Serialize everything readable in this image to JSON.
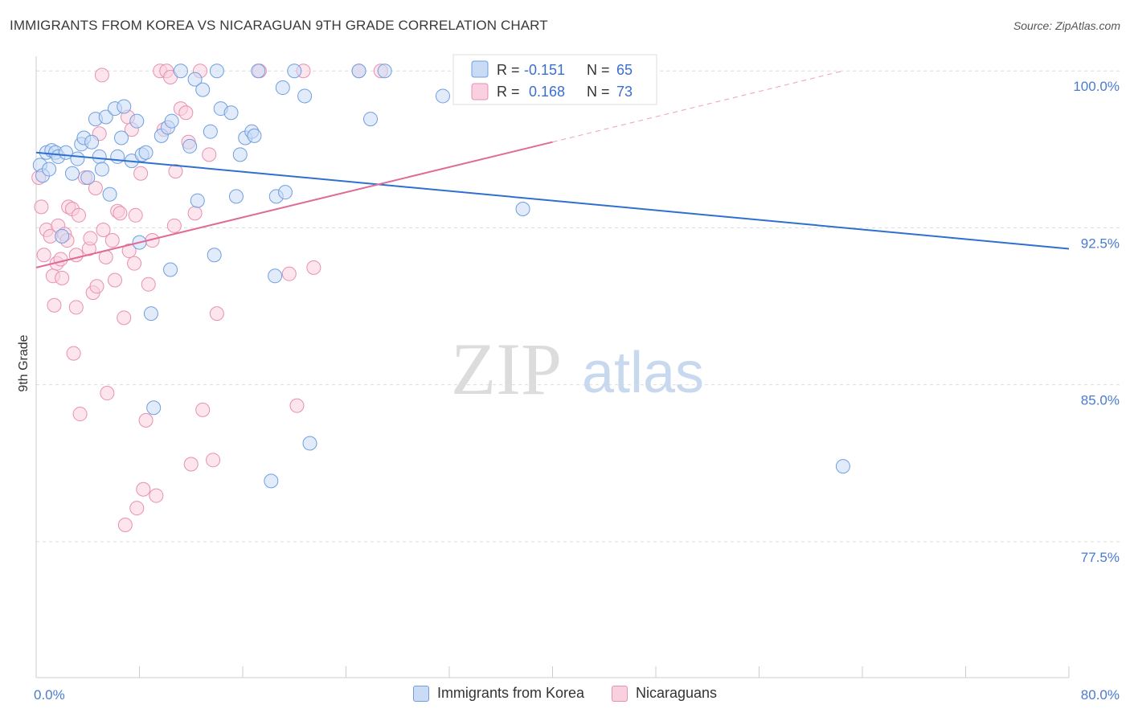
{
  "title": "IMMIGRANTS FROM KOREA VS NICARAGUAN 9TH GRADE CORRELATION CHART",
  "source": "Source: ZipAtlas.com",
  "watermark": {
    "zip": "ZIP",
    "atlas": "atlas"
  },
  "chart_data": {
    "type": "scatter",
    "xlabel": "",
    "ylabel": "9th Grade",
    "xlim": [
      0,
      80
    ],
    "ylim": [
      71,
      100.7
    ],
    "x_tick_labels": [
      "0.0%",
      "80.0%"
    ],
    "y_ticks": [
      {
        "value": 100.0,
        "label": "100.0%"
      },
      {
        "value": 92.5,
        "label": "92.5%"
      },
      {
        "value": 85.0,
        "label": "85.0%"
      },
      {
        "value": 77.5,
        "label": "77.5%"
      }
    ],
    "grid": true,
    "legend": {
      "placement": "top-center",
      "rows": [
        {
          "r_label": "R = ",
          "r_value": "-0.151",
          "n_label": "N = ",
          "n_value": "65"
        },
        {
          "r_label": "R = ",
          "r_value": "0.168",
          "n_label": "N = ",
          "n_value": "73"
        }
      ]
    },
    "series": [
      {
        "name": "Immigrants from Korea",
        "color": "#6f9fe0",
        "fill": "#c9dbf5",
        "trend": {
          "x": [
            0,
            80
          ],
          "y": [
            96.1,
            91.5
          ]
        },
        "points": [
          [
            0.3,
            95.5
          ],
          [
            0.5,
            95.0
          ],
          [
            0.8,
            96.1
          ],
          [
            1.0,
            95.3
          ],
          [
            1.2,
            96.2
          ],
          [
            1.5,
            96.1
          ],
          [
            1.7,
            95.9
          ],
          [
            2.0,
            92.1
          ],
          [
            2.3,
            96.1
          ],
          [
            2.8,
            95.1
          ],
          [
            3.2,
            95.8
          ],
          [
            3.5,
            96.5
          ],
          [
            3.7,
            96.8
          ],
          [
            4.0,
            94.9
          ],
          [
            4.3,
            96.6
          ],
          [
            4.6,
            97.7
          ],
          [
            4.9,
            95.9
          ],
          [
            5.1,
            95.3
          ],
          [
            5.4,
            97.8
          ],
          [
            5.7,
            94.1
          ],
          [
            6.1,
            98.2
          ],
          [
            6.3,
            95.9
          ],
          [
            6.6,
            96.8
          ],
          [
            6.8,
            98.3
          ],
          [
            7.4,
            95.7
          ],
          [
            7.8,
            97.6
          ],
          [
            8.2,
            96.0
          ],
          [
            8.0,
            91.8
          ],
          [
            8.5,
            96.1
          ],
          [
            8.9,
            88.4
          ],
          [
            9.1,
            83.9
          ],
          [
            9.7,
            96.9
          ],
          [
            10.2,
            97.3
          ],
          [
            10.5,
            97.6
          ],
          [
            10.4,
            90.5
          ],
          [
            11.2,
            100.0
          ],
          [
            11.9,
            96.4
          ],
          [
            12.3,
            99.6
          ],
          [
            12.5,
            93.8
          ],
          [
            12.9,
            99.1
          ],
          [
            13.5,
            97.1
          ],
          [
            14.3,
            98.2
          ],
          [
            14.0,
            100.0
          ],
          [
            13.8,
            91.2
          ],
          [
            15.1,
            98.0
          ],
          [
            15.5,
            94.0
          ],
          [
            15.8,
            96.0
          ],
          [
            16.2,
            96.8
          ],
          [
            16.7,
            97.1
          ],
          [
            16.9,
            96.9
          ],
          [
            17.2,
            100.0
          ],
          [
            18.2,
            80.4
          ],
          [
            18.5,
            90.2
          ],
          [
            18.6,
            94.0
          ],
          [
            19.3,
            94.2
          ],
          [
            19.1,
            99.2
          ],
          [
            20.0,
            100.0
          ],
          [
            20.8,
            98.8
          ],
          [
            21.2,
            82.2
          ],
          [
            25.0,
            100.0
          ],
          [
            25.9,
            97.7
          ],
          [
            27.0,
            100.0
          ],
          [
            31.5,
            98.8
          ],
          [
            37.7,
            93.4
          ],
          [
            62.5,
            81.1
          ]
        ]
      },
      {
        "name": "Nicaraguans",
        "color": "#e890b0",
        "fill": "#f9d0df",
        "trend": {
          "x": [
            0,
            40
          ],
          "y": [
            90.6,
            96.6
          ]
        },
        "trend_dashed": {
          "x": [
            40,
            62.5
          ],
          "y": [
            96.6,
            100.0
          ]
        },
        "points": [
          [
            0.2,
            94.9
          ],
          [
            0.4,
            93.5
          ],
          [
            0.6,
            91.2
          ],
          [
            0.8,
            92.4
          ],
          [
            1.1,
            92.1
          ],
          [
            1.3,
            90.2
          ],
          [
            1.4,
            88.8
          ],
          [
            1.6,
            90.8
          ],
          [
            1.7,
            92.6
          ],
          [
            1.9,
            91.0
          ],
          [
            2.0,
            90.1
          ],
          [
            2.2,
            92.2
          ],
          [
            2.4,
            91.9
          ],
          [
            2.5,
            93.5
          ],
          [
            2.8,
            93.4
          ],
          [
            2.9,
            86.5
          ],
          [
            3.1,
            91.2
          ],
          [
            3.1,
            88.7
          ],
          [
            3.3,
            93.1
          ],
          [
            3.4,
            83.6
          ],
          [
            3.8,
            94.9
          ],
          [
            4.1,
            91.5
          ],
          [
            4.2,
            92.0
          ],
          [
            4.4,
            89.4
          ],
          [
            4.6,
            94.4
          ],
          [
            4.7,
            89.7
          ],
          [
            4.9,
            97.0
          ],
          [
            5.1,
            99.8
          ],
          [
            5.2,
            92.4
          ],
          [
            5.4,
            91.1
          ],
          [
            5.5,
            84.6
          ],
          [
            5.9,
            91.9
          ],
          [
            6.1,
            90.0
          ],
          [
            6.3,
            93.3
          ],
          [
            6.5,
            93.2
          ],
          [
            6.8,
            88.2
          ],
          [
            6.9,
            78.3
          ],
          [
            7.1,
            97.8
          ],
          [
            7.2,
            91.4
          ],
          [
            7.4,
            97.2
          ],
          [
            7.6,
            90.8
          ],
          [
            7.7,
            93.1
          ],
          [
            7.8,
            79.1
          ],
          [
            8.1,
            95.1
          ],
          [
            8.3,
            80.0
          ],
          [
            8.5,
            83.3
          ],
          [
            8.7,
            89.8
          ],
          [
            9.0,
            91.9
          ],
          [
            9.3,
            79.7
          ],
          [
            9.6,
            100.0
          ],
          [
            9.9,
            97.2
          ],
          [
            10.1,
            100.0
          ],
          [
            10.4,
            99.7
          ],
          [
            10.7,
            92.6
          ],
          [
            10.8,
            95.2
          ],
          [
            11.2,
            98.2
          ],
          [
            11.6,
            98.0
          ],
          [
            11.8,
            96.6
          ],
          [
            12.0,
            81.2
          ],
          [
            12.3,
            93.2
          ],
          [
            12.7,
            100.0
          ],
          [
            12.9,
            83.8
          ],
          [
            13.4,
            96.0
          ],
          [
            13.7,
            81.4
          ],
          [
            14.0,
            88.4
          ],
          [
            17.3,
            100.0
          ],
          [
            19.6,
            90.3
          ],
          [
            20.2,
            84.0
          ],
          [
            20.7,
            100.0
          ],
          [
            21.5,
            90.6
          ],
          [
            25.0,
            100.0
          ],
          [
            26.7,
            100.0
          ],
          [
            33.0,
            100.0
          ]
        ]
      }
    ]
  }
}
